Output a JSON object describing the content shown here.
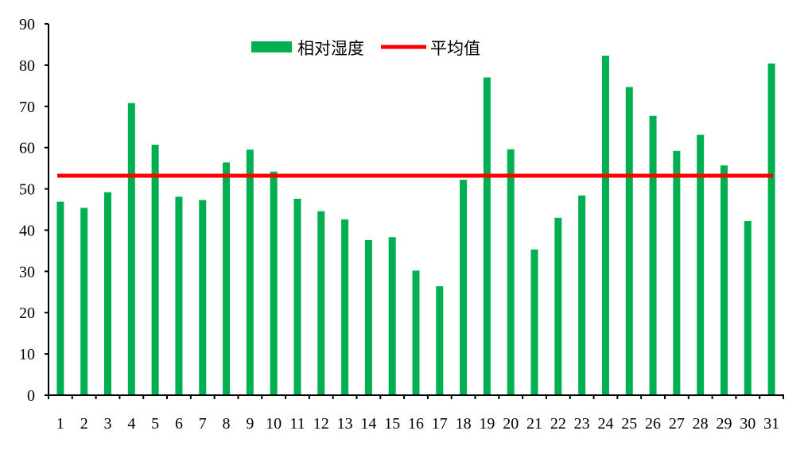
{
  "chart_data": {
    "type": "bar",
    "categories": [
      "1",
      "2",
      "3",
      "4",
      "5",
      "6",
      "7",
      "8",
      "9",
      "10",
      "11",
      "12",
      "13",
      "14",
      "15",
      "16",
      "17",
      "18",
      "19",
      "20",
      "21",
      "22",
      "23",
      "24",
      "25",
      "26",
      "27",
      "28",
      "29",
      "30",
      "31"
    ],
    "series": [
      {
        "name": "相对湿度",
        "type": "bar",
        "color": "#00b050",
        "values": [
          46.9,
          45.4,
          49.2,
          70.8,
          60.7,
          48.1,
          47.3,
          56.4,
          59.5,
          54.2,
          47.6,
          44.6,
          42.6,
          37.6,
          38.3,
          30.2,
          26.4,
          52.2,
          77.0,
          59.6,
          35.3,
          43.0,
          48.4,
          82.3,
          74.7,
          67.7,
          59.2,
          63.1,
          55.7,
          42.2,
          80.4
        ]
      },
      {
        "name": "平均值",
        "type": "line",
        "color": "#ff0000",
        "value": 53.2
      }
    ],
    "ylim": [
      0,
      90
    ],
    "yticks": [
      0,
      10,
      20,
      30,
      40,
      50,
      60,
      70,
      80,
      90
    ],
    "legend_position": "top-center",
    "grid": false
  }
}
